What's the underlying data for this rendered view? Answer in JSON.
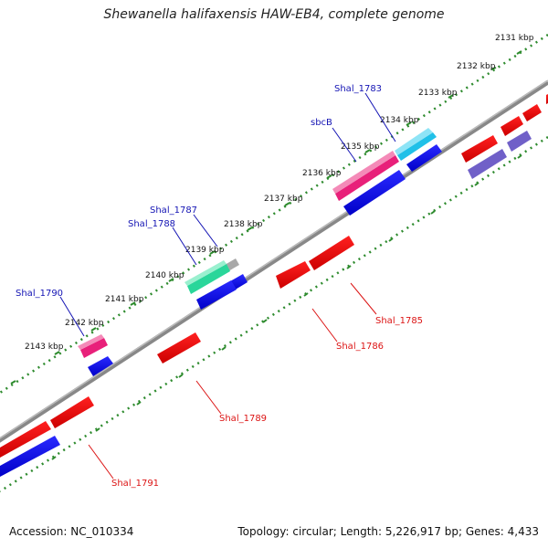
{
  "title": "Shewanella halifaxensis HAW-EB4, complete genome",
  "footer": {
    "accession": "Accession: NC_010334",
    "topology": "Topology: circular; Length: 5,226,917 bp; Genes: 4,433"
  },
  "colors": {
    "backbone": "#888888",
    "tick": "#2e8b2e",
    "forward_label": "#1414b4",
    "reverse_label": "#dc1414"
  },
  "tick_labels": [
    "2131 kbp",
    "2132 kbp",
    "2133 kbp",
    "2134 kbp",
    "2135 kbp",
    "2136 kbp",
    "2137 kbp",
    "2138 kbp",
    "2139 kbp",
    "2140 kbp",
    "2141 kbp",
    "2142 kbp",
    "2143 kbp"
  ],
  "gene_labels": [
    {
      "text": "Shal_1783",
      "strand": "forward"
    },
    {
      "text": "sbcB",
      "strand": "forward"
    },
    {
      "text": "Shal_1787",
      "strand": "forward"
    },
    {
      "text": "Shal_1788",
      "strand": "forward"
    },
    {
      "text": "Shal_1790",
      "strand": "forward"
    },
    {
      "text": "Shal_1785",
      "strand": "reverse"
    },
    {
      "text": "Shal_1786",
      "strand": "reverse"
    },
    {
      "text": "Shal_1789",
      "strand": "reverse"
    },
    {
      "text": "Shal_1791",
      "strand": "reverse"
    }
  ]
}
